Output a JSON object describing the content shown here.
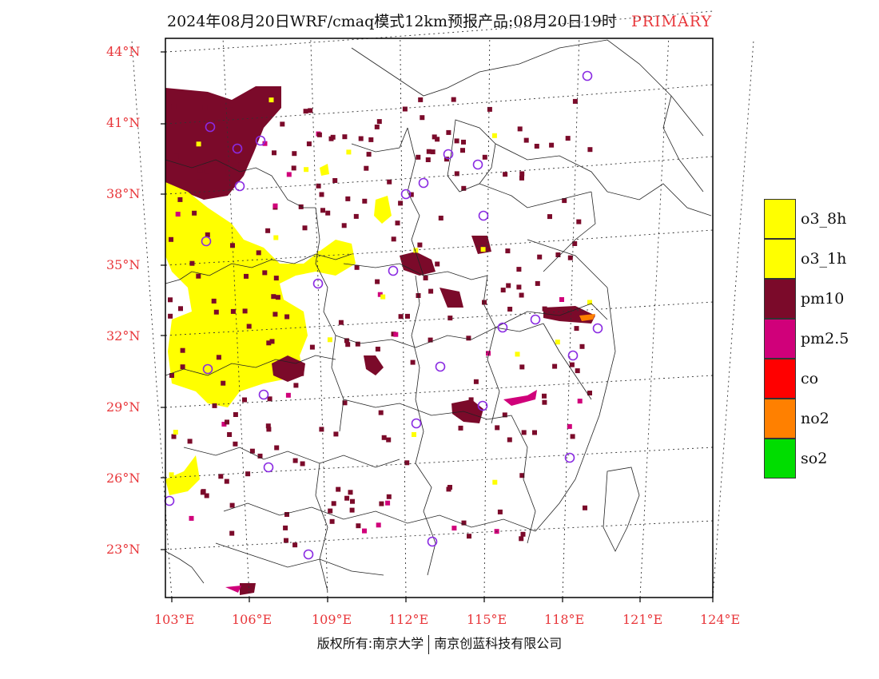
{
  "title": {
    "text": "2024年08月20日WRF/cmaq模式12km预报产品:08月20日19时",
    "tag": "PRIMARY",
    "tag_color": "#e8363a"
  },
  "axes": {
    "lat_ticks": [
      "44°N",
      "41°N",
      "38°N",
      "35°N",
      "32°N",
      "29°N",
      "26°N",
      "23°N"
    ],
    "lon_ticks": [
      "103°E",
      "106°E",
      "109°E",
      "112°E",
      "115°E",
      "118°E",
      "121°E",
      "124°E"
    ],
    "tick_color": "#e8363a"
  },
  "legend": [
    {
      "label": "o3_8h",
      "color": "#ffff00"
    },
    {
      "label": "o3_1h",
      "color": "#ffff00"
    },
    {
      "label": "pm10",
      "color": "#7b0a2a"
    },
    {
      "label": "pm2.5",
      "color": "#d0007a"
    },
    {
      "label": "co",
      "color": "#ff0000"
    },
    {
      "label": "no2",
      "color": "#ff8000"
    },
    {
      "label": "so2",
      "color": "#00dd00"
    }
  ],
  "footer": {
    "left": "版权所有:南京大学",
    "right": "南京创蓝科技有限公司"
  }
}
